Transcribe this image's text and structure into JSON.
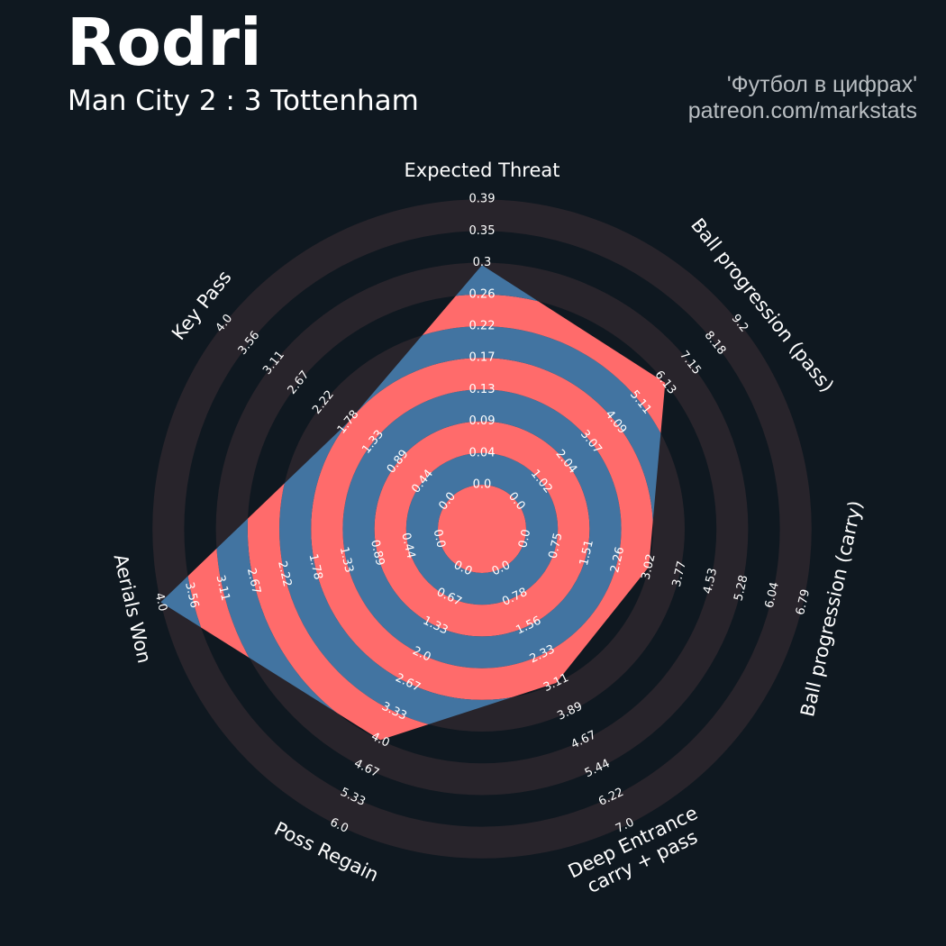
{
  "header": {
    "player": "Rodri",
    "match": "Man City 2 : 3 Tottenham",
    "credit_line1": "'Футбол в цифрах'",
    "credit_line2": "patreon.com/markstats"
  },
  "colors": {
    "background": "#0f1820",
    "outer_band": "#28242b",
    "inner_band_a": "#ff6b6b",
    "inner_band_b": "#4274a1",
    "labels": "#ffffff"
  },
  "chart_data": {
    "type": "radar",
    "title": "Rodri",
    "subtitle": "Man City 2 : 3 Tottenham",
    "axes": [
      {
        "label": [
          "Expected Threat"
        ],
        "min": 0,
        "max": 0.39,
        "value": 0.3,
        "ticks": [
          "0.0",
          "0.04",
          "0.09",
          "0.13",
          "0.17",
          "0.22",
          "0.26",
          "0.3",
          "0.35",
          "0.39"
        ]
      },
      {
        "label": [
          "Ball progression (pass)"
        ],
        "min": 0,
        "max": 9.2,
        "value": 6.13,
        "ticks": [
          "0.0",
          "1.02",
          "2.04",
          "3.07",
          "4.09",
          "5.11",
          "6.13",
          "7.15",
          "8.18",
          "9.2"
        ]
      },
      {
        "label": [
          "Ball progression (carry)"
        ],
        "min": 0,
        "max": 6.79,
        "value": 3.02,
        "ticks": [
          "0.0",
          "0.75",
          "1.51",
          "2.26",
          "3.02",
          "3.77",
          "4.53",
          "5.28",
          "6.04",
          "6.79"
        ]
      },
      {
        "label": [
          "Deep Entrance",
          "carry + pass"
        ],
        "min": 0,
        "max": 7.0,
        "value": 3.11,
        "ticks": [
          "0.0",
          "0.78",
          "1.56",
          "2.33",
          "3.11",
          "3.89",
          "4.67",
          "5.44",
          "6.22",
          "7.0"
        ]
      },
      {
        "label": [
          "Poss Regain"
        ],
        "min": 0,
        "max": 6.0,
        "value": 4.0,
        "ticks": [
          "0.0",
          "0.67",
          "1.33",
          "2.0",
          "2.67",
          "3.33",
          "4.0",
          "4.67",
          "5.33",
          "6.0"
        ]
      },
      {
        "label": [
          "Aerials Won"
        ],
        "min": 0,
        "max": 4.0,
        "value": 4.0,
        "ticks": [
          "0.0",
          "0.44",
          "0.89",
          "1.33",
          "1.78",
          "2.22",
          "2.67",
          "3.11",
          "3.56",
          "4.0"
        ]
      },
      {
        "label": [
          "Key Pass"
        ],
        "min": 0,
        "max": 4.0,
        "value": 1.78,
        "ticks": [
          "0.0",
          "0.44",
          "0.89",
          "1.33",
          "1.78",
          "2.22",
          "2.67",
          "3.11",
          "3.56",
          "4.0"
        ]
      }
    ]
  }
}
